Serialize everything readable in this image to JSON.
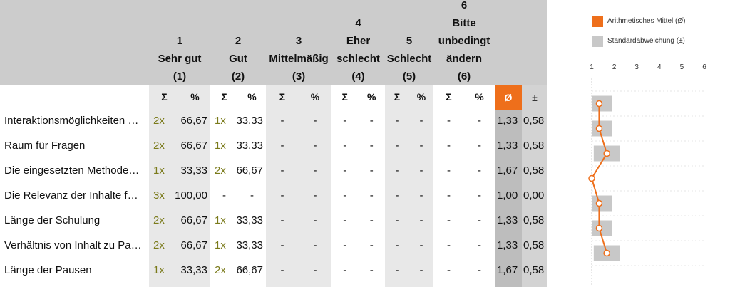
{
  "header": {
    "groups": [
      {
        "number": "1",
        "label_lines": [
          "Sehr gut"
        ],
        "code": "(1)"
      },
      {
        "number": "2",
        "label_lines": [
          "Gut"
        ],
        "code": "(2)"
      },
      {
        "number": "3",
        "label_lines": [
          "Mittelmäßig"
        ],
        "code": "(3)"
      },
      {
        "number": "4",
        "label_lines": [
          "Eher",
          "schlecht"
        ],
        "code": "(4)"
      },
      {
        "number": "5",
        "label_lines": [
          "Schlecht"
        ],
        "code": "(5)"
      },
      {
        "number": "6",
        "label_lines": [
          "Bitte",
          "unbedingt",
          "ändern"
        ],
        "code": "(6)"
      }
    ],
    "sum_symbol": "Σ",
    "pct_symbol": "%",
    "mean_symbol": "Ø",
    "sd_symbol": "±"
  },
  "legend": {
    "mean_label": "Arithmetisches Mittel (Ø)",
    "sd_label": "Standardabweichung (±)"
  },
  "colors": {
    "accent": "#ee6f1b",
    "sd_bar": "#c8c8c8",
    "count_text": "#7a7a1a"
  },
  "scale_ticks": [
    "1",
    "2",
    "3",
    "4",
    "5",
    "6"
  ],
  "rows": [
    {
      "label": "Interaktionsmöglichkeiten …",
      "cells": [
        [
          "2x",
          "66,67"
        ],
        [
          "1x",
          "33,33"
        ],
        [
          "-",
          "-"
        ],
        [
          "-",
          "-"
        ],
        [
          "-",
          "-"
        ],
        [
          "-",
          "-"
        ]
      ],
      "mean": "1,33",
      "sd": "0,58"
    },
    {
      "label": "Raum für Fragen",
      "cells": [
        [
          "2x",
          "66,67"
        ],
        [
          "1x",
          "33,33"
        ],
        [
          "-",
          "-"
        ],
        [
          "-",
          "-"
        ],
        [
          "-",
          "-"
        ],
        [
          "-",
          "-"
        ]
      ],
      "mean": "1,33",
      "sd": "0,58"
    },
    {
      "label": "Die eingesetzten Methode…",
      "cells": [
        [
          "1x",
          "33,33"
        ],
        [
          "2x",
          "66,67"
        ],
        [
          "-",
          "-"
        ],
        [
          "-",
          "-"
        ],
        [
          "-",
          "-"
        ],
        [
          "-",
          "-"
        ]
      ],
      "mean": "1,67",
      "sd": "0,58"
    },
    {
      "label": "Die Relevanz der Inhalte f…",
      "cells": [
        [
          "3x",
          "100,00"
        ],
        [
          "-",
          "-"
        ],
        [
          "-",
          "-"
        ],
        [
          "-",
          "-"
        ],
        [
          "-",
          "-"
        ],
        [
          "-",
          "-"
        ]
      ],
      "mean": "1,00",
      "sd": "0,00"
    },
    {
      "label": "Länge der Schulung",
      "cells": [
        [
          "2x",
          "66,67"
        ],
        [
          "1x",
          "33,33"
        ],
        [
          "-",
          "-"
        ],
        [
          "-",
          "-"
        ],
        [
          "-",
          "-"
        ],
        [
          "-",
          "-"
        ]
      ],
      "mean": "1,33",
      "sd": "0,58"
    },
    {
      "label": "Verhältnis von Inhalt zu Pa…",
      "cells": [
        [
          "2x",
          "66,67"
        ],
        [
          "1x",
          "33,33"
        ],
        [
          "-",
          "-"
        ],
        [
          "-",
          "-"
        ],
        [
          "-",
          "-"
        ],
        [
          "-",
          "-"
        ]
      ],
      "mean": "1,33",
      "sd": "0,58"
    },
    {
      "label": "Länge der Pausen",
      "cells": [
        [
          "1x",
          "33,33"
        ],
        [
          "2x",
          "66,67"
        ],
        [
          "-",
          "-"
        ],
        [
          "-",
          "-"
        ],
        [
          "-",
          "-"
        ],
        [
          "-",
          "-"
        ]
      ],
      "mean": "1,67",
      "sd": "0,58"
    }
  ],
  "chart_data": {
    "type": "line",
    "categories": [
      "Interaktionsmöglichkeiten …",
      "Raum für Fragen",
      "Die eingesetzten Methode…",
      "Die Relevanz der Inhalte f…",
      "Länge der Schulung",
      "Verhältnis von Inhalt zu Pa…",
      "Länge der Pausen"
    ],
    "series": [
      {
        "name": "Arithmetisches Mittel (Ø)",
        "values": [
          1.33,
          1.33,
          1.67,
          1.0,
          1.33,
          1.33,
          1.67
        ]
      },
      {
        "name": "Standardabweichung (±)",
        "values": [
          0.58,
          0.58,
          0.58,
          0.0,
          0.58,
          0.58,
          0.58
        ]
      }
    ],
    "xlim": [
      1,
      6
    ],
    "legend_position": "top-right"
  }
}
